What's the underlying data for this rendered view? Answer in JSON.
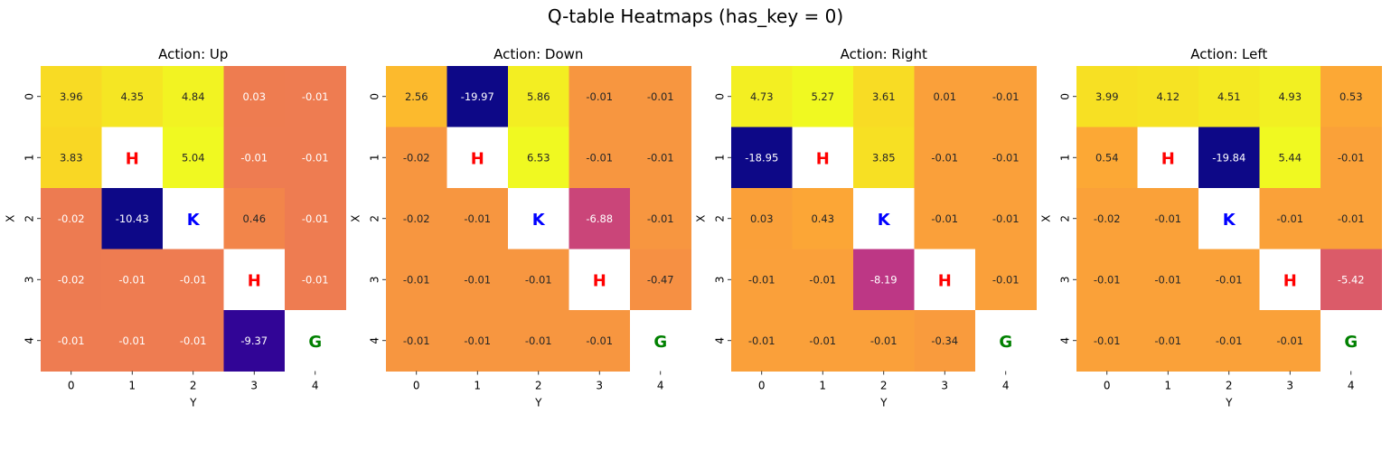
{
  "chart_data": {
    "type": "heatmap",
    "title": "Q-table Heatmaps (has_key = 0)",
    "colormap": "plasma",
    "xlabel": "Y",
    "ylabel": "X",
    "x_ticks": [
      "0",
      "1",
      "2",
      "3",
      "4"
    ],
    "y_ticks": [
      "0",
      "1",
      "2",
      "3",
      "4"
    ],
    "vmin": -19.97,
    "vmax": 6.53,
    "special_cells": [
      {
        "row": 1,
        "col": 1,
        "label": "H",
        "color": "#ff0000"
      },
      {
        "row": 2,
        "col": 2,
        "label": "K",
        "color": "#0000ff"
      },
      {
        "row": 3,
        "col": 3,
        "label": "H",
        "color": "#ff0000"
      },
      {
        "row": 4,
        "col": 4,
        "label": "G",
        "color": "#008000"
      }
    ],
    "panels": [
      {
        "title": "Action: Up",
        "values": [
          [
            3.96,
            4.35,
            4.84,
            0.03,
            -0.01
          ],
          [
            3.83,
            null,
            5.04,
            -0.01,
            -0.01
          ],
          [
            -0.02,
            -10.43,
            null,
            0.46,
            -0.01
          ],
          [
            -0.02,
            -0.01,
            -0.01,
            null,
            -0.01
          ],
          [
            -0.01,
            -0.01,
            -0.01,
            -9.37,
            null
          ]
        ],
        "vmin": -10.43,
        "vmax": 5.04
      },
      {
        "title": "Action: Down",
        "values": [
          [
            2.56,
            -19.97,
            5.86,
            -0.01,
            -0.01
          ],
          [
            -0.02,
            null,
            6.53,
            -0.01,
            -0.01
          ],
          [
            -0.02,
            -0.01,
            null,
            -6.88,
            -0.01
          ],
          [
            -0.01,
            -0.01,
            -0.01,
            null,
            -0.47
          ],
          [
            -0.01,
            -0.01,
            -0.01,
            -0.01,
            null
          ]
        ],
        "vmin": -19.97,
        "vmax": 6.53
      },
      {
        "title": "Action: Right",
        "values": [
          [
            4.73,
            5.27,
            3.61,
            0.01,
            -0.01
          ],
          [
            -18.95,
            null,
            3.85,
            -0.01,
            -0.01
          ],
          [
            0.03,
            0.43,
            null,
            -0.01,
            -0.01
          ],
          [
            -0.01,
            -0.01,
            -8.19,
            null,
            -0.01
          ],
          [
            -0.01,
            -0.01,
            -0.01,
            -0.34,
            null
          ]
        ],
        "vmin": -18.95,
        "vmax": 5.27
      },
      {
        "title": "Action: Left",
        "values": [
          [
            3.99,
            4.12,
            4.51,
            4.93,
            0.53
          ],
          [
            0.54,
            null,
            -19.84,
            5.44,
            -0.01
          ],
          [
            -0.02,
            -0.01,
            null,
            -0.01,
            -0.01
          ],
          [
            -0.01,
            -0.01,
            -0.01,
            null,
            -5.42
          ],
          [
            -0.01,
            -0.01,
            -0.01,
            -0.01,
            null
          ]
        ],
        "vmin": -19.84,
        "vmax": 5.44
      }
    ]
  }
}
